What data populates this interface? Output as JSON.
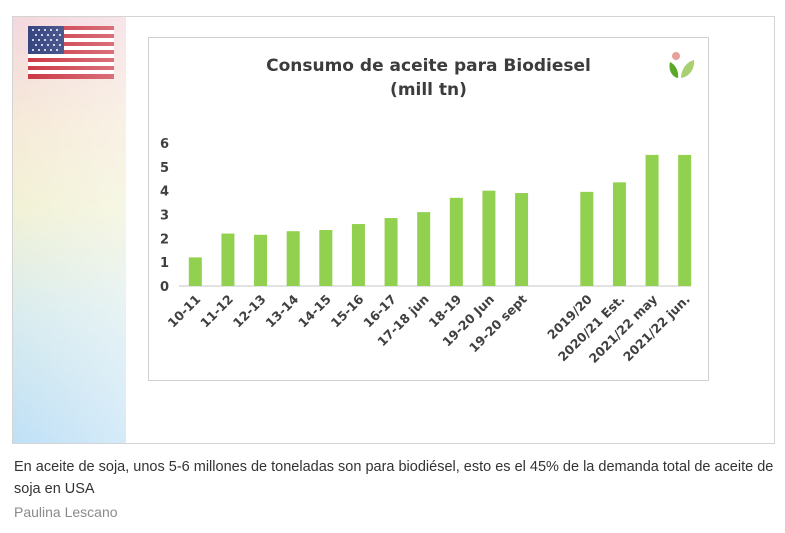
{
  "figure": {
    "caption": "En aceite de soja, unos 5-6 millones de toneladas son para biodiésel, esto es el 45% de la demanda total de aceite de soja en USA",
    "author": "Paulina Lescano",
    "flag_icon": "usa-flag-icon",
    "logo_icon": "leaf-logo-icon"
  },
  "colors": {
    "bar": "#92d050",
    "axis": "#d9d9d9",
    "text": "#404040"
  },
  "chart_data": {
    "type": "bar",
    "title_line1": "Consumo de aceite para Biodiesel",
    "title_line2": "(mill tn)",
    "categories": [
      "10-11",
      "11-12",
      "12-13",
      "13-14",
      "14-15",
      "15-16",
      "16-17",
      "17-18 jun",
      "18-19",
      "19-20 Jun",
      "19-20 sept",
      "",
      "2019/20",
      "2020/21 Est.",
      "2021/22 may",
      "2021/22 jun."
    ],
    "values": [
      1.2,
      2.2,
      2.15,
      2.3,
      2.35,
      2.6,
      2.85,
      3.1,
      3.7,
      4.0,
      3.9,
      null,
      3.95,
      4.35,
      5.5,
      5.5
    ],
    "y_ticks": [
      "0",
      "1",
      "2",
      "3",
      "4",
      "5",
      "6"
    ],
    "ylim": [
      0,
      6
    ],
    "grid": false,
    "legend": "none"
  }
}
